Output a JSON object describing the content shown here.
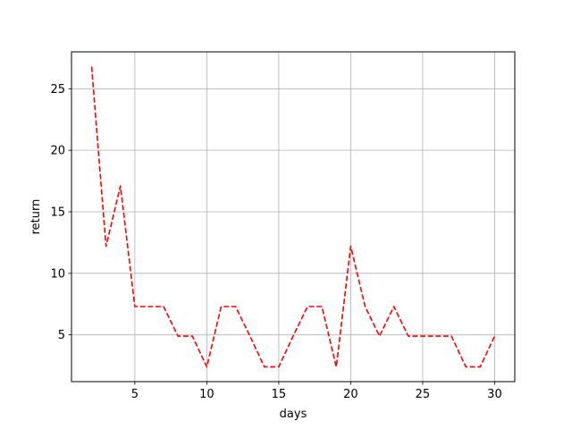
{
  "chart_data": {
    "type": "line",
    "xlabel": "days",
    "ylabel": "return",
    "xlim": [
      0.6,
      31.4
    ],
    "ylim": [
      1.2,
      28.0
    ],
    "xticks": [
      5,
      10,
      15,
      20,
      25,
      30
    ],
    "yticks": [
      5,
      10,
      15,
      20,
      25
    ],
    "grid": true,
    "series": [
      {
        "color": "#ff0000",
        "linestyle": "dashed",
        "x": [
          2,
          3,
          4,
          5,
          6,
          7,
          8,
          9,
          10,
          11,
          12,
          13,
          14,
          15,
          16,
          17,
          18,
          19,
          20,
          21,
          22,
          23,
          24,
          25,
          26,
          27,
          28,
          29,
          30
        ],
        "y": [
          26.8,
          12.2,
          17.1,
          7.3,
          7.3,
          7.3,
          4.9,
          4.9,
          2.4,
          7.3,
          7.3,
          4.9,
          2.4,
          2.4,
          4.9,
          7.3,
          7.3,
          2.4,
          12.2,
          7.3,
          4.9,
          7.3,
          4.9,
          4.9,
          4.9,
          4.9,
          2.4,
          2.4,
          4.9
        ]
      }
    ]
  }
}
